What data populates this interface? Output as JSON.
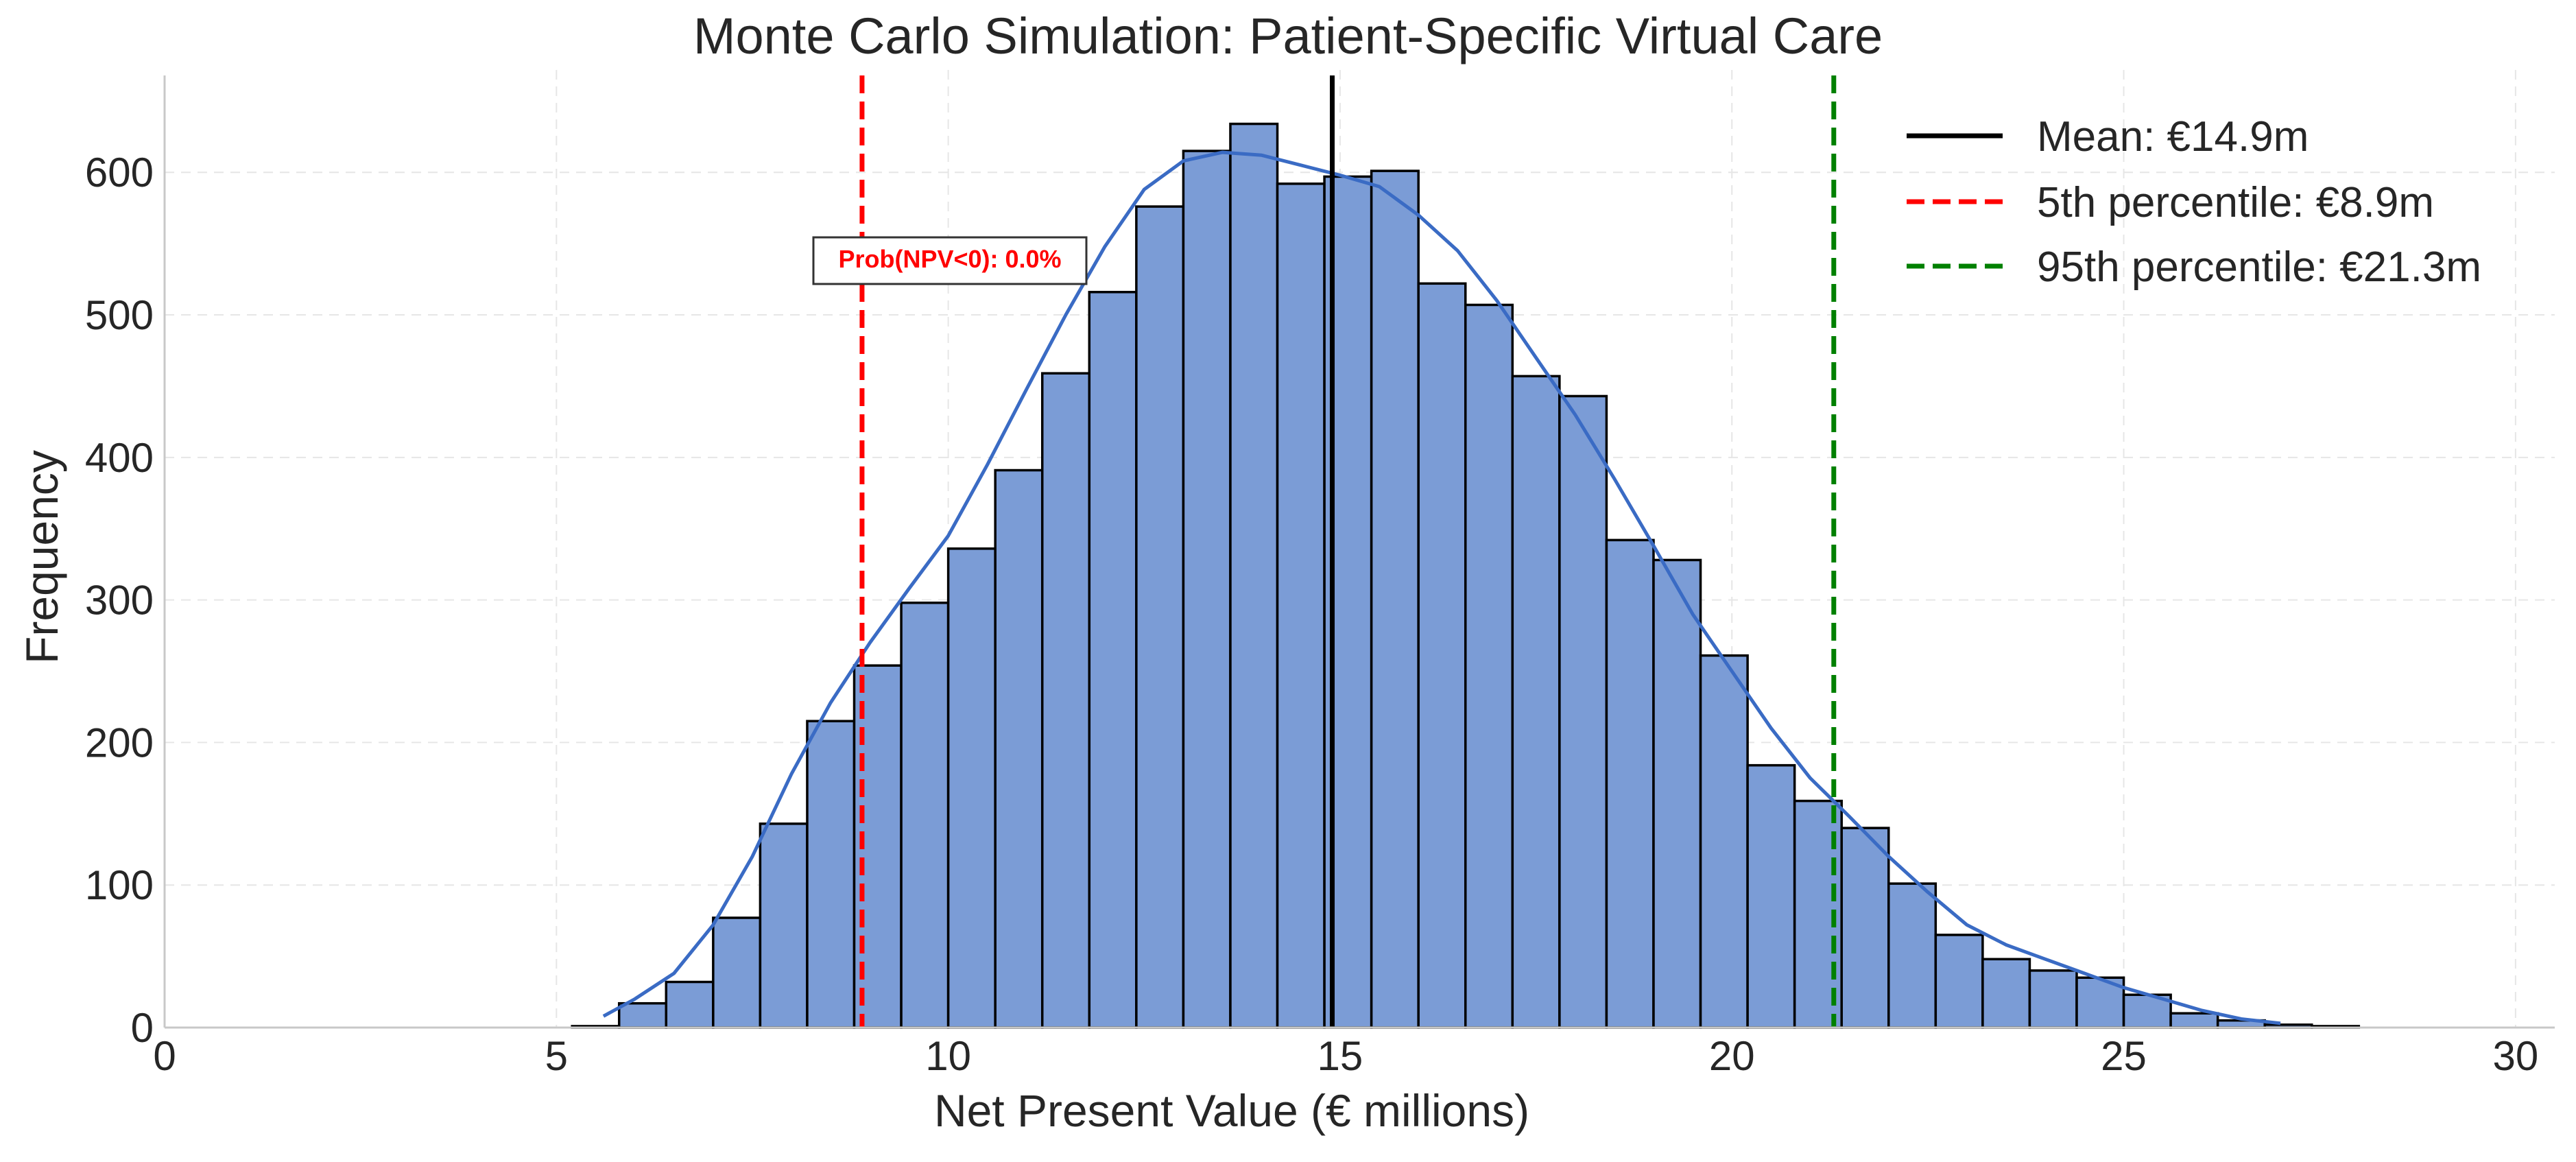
{
  "chart_data": {
    "type": "bar",
    "title": "Monte Carlo Simulation: Patient-Specific Virtual Care",
    "xlabel": "Net Present Value (€ millions)",
    "ylabel": "Frequency",
    "xlim": [
      0,
      30.5
    ],
    "ylim": [
      0,
      667
    ],
    "xticks": [
      0,
      5,
      10,
      15,
      20,
      25,
      30
    ],
    "yticks": [
      0,
      100,
      200,
      300,
      400,
      500,
      600
    ],
    "grid": true,
    "legend_position": "top-right",
    "bins": {
      "start": 5.2,
      "width": 0.6,
      "counts": [
        1,
        17,
        32,
        77,
        143,
        215,
        254,
        298,
        336,
        391,
        459,
        516,
        576,
        615,
        634,
        592,
        597,
        601,
        522,
        507,
        457,
        443,
        342,
        328,
        261,
        184,
        159,
        140,
        101,
        65,
        48,
        40,
        35,
        23,
        10,
        5,
        2,
        1
      ]
    },
    "kde": {
      "x": [
        5.6,
        6.0,
        6.5,
        7.0,
        7.5,
        8.0,
        8.5,
        9.0,
        9.5,
        10.0,
        10.5,
        11.0,
        11.5,
        12.0,
        12.5,
        13.0,
        13.5,
        14.0,
        14.5,
        15.0,
        15.5,
        16.0,
        16.5,
        17.0,
        17.5,
        18.0,
        18.5,
        19.0,
        19.5,
        20.0,
        20.5,
        21.0,
        21.5,
        22.0,
        22.5,
        23.0,
        23.5,
        24.0,
        24.5,
        25.0,
        25.5,
        26.0,
        26.5,
        27.0
      ],
      "y": [
        8,
        20,
        38,
        72,
        120,
        178,
        228,
        270,
        308,
        345,
        395,
        448,
        500,
        548,
        588,
        608,
        614,
        612,
        605,
        598,
        590,
        570,
        545,
        510,
        470,
        430,
        385,
        338,
        290,
        250,
        210,
        175,
        148,
        120,
        95,
        72,
        58,
        48,
        38,
        28,
        20,
        12,
        6,
        3
      ]
    },
    "lines": [
      {
        "name": "Mean: €14.9m",
        "x": 14.9,
        "color": "#000000",
        "style": "solid"
      },
      {
        "name": "5th percentile: €8.9m",
        "x": 8.9,
        "color": "#ff0000",
        "style": "dashed"
      },
      {
        "name": "95th percentile: €21.3m",
        "x": 21.3,
        "color": "#008000",
        "style": "dashed"
      }
    ],
    "annotation": {
      "text": "Prob(NPV<0): 0.0%",
      "color": "#ff0000"
    },
    "colors": {
      "bar_fill": "#7b9cd6",
      "bar_edge": "#000000",
      "kde": "#3a6bc4",
      "grid": "#e6e6e6",
      "axis": "#c8c8c8"
    }
  }
}
